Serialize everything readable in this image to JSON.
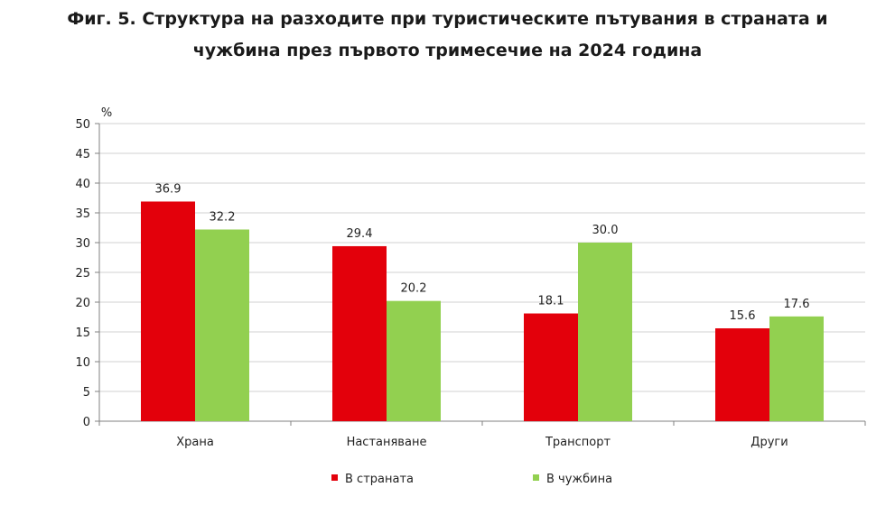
{
  "title_line1": "Фиг. 5. Структура на разходите при туристическите пътувания в страната и",
  "title_line2": "чужбина през първото тримесечие на 2024 година",
  "colors": {
    "series1": "#e3000b",
    "series2": "#92d050",
    "grid": "#d0d0d0",
    "axis": "#808080"
  },
  "chart_data": {
    "type": "bar",
    "categories": [
      "Храна",
      "Настаняване",
      "Транспорт",
      "Други"
    ],
    "series": [
      {
        "name": "В страната",
        "values": [
          36.9,
          29.4,
          18.1,
          15.6
        ]
      },
      {
        "name": "В чужбина",
        "values": [
          32.2,
          20.2,
          30.0,
          17.6
        ]
      }
    ],
    "value_labels": [
      [
        "36.9",
        "29.4",
        "18.1",
        "15.6"
      ],
      [
        "32.2",
        "20.2",
        "30.0",
        "17.6"
      ]
    ],
    "ylabel": "%",
    "ylim": [
      0,
      50
    ],
    "yticks": [
      0,
      5,
      10,
      15,
      20,
      25,
      30,
      35,
      40,
      45,
      50
    ],
    "grid": true,
    "legend_position": "bottom"
  }
}
